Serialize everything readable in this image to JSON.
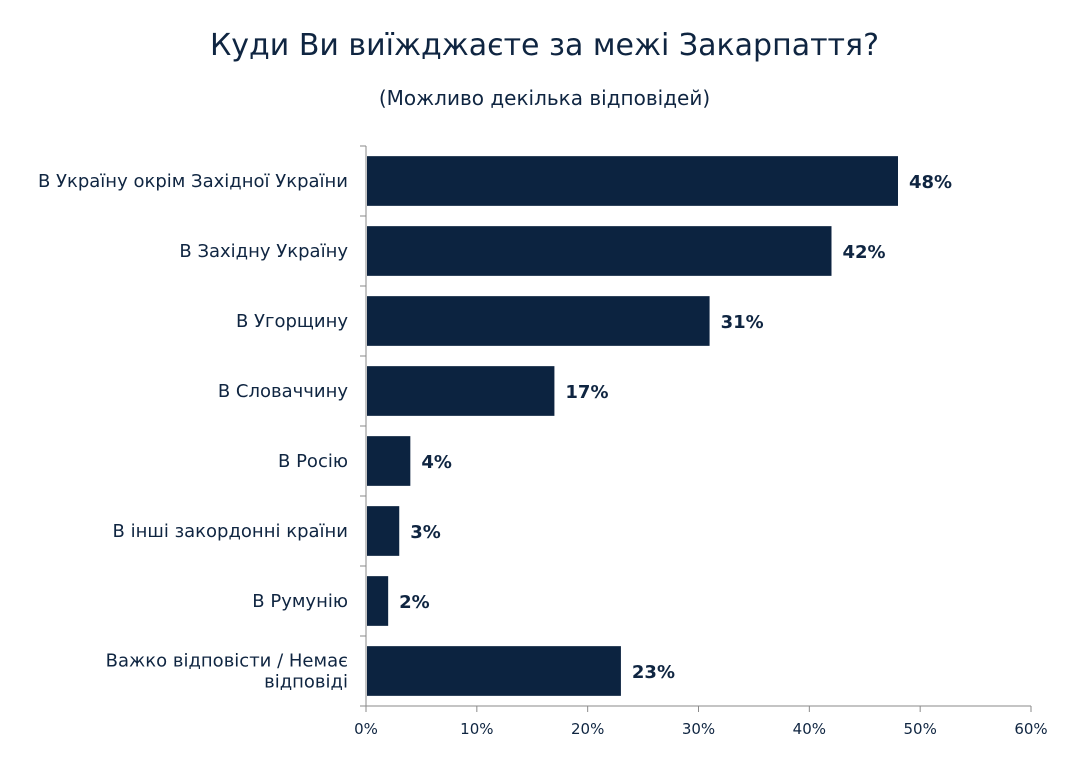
{
  "chart_data": {
    "type": "bar",
    "orientation": "horizontal",
    "title": "Куди Ви виїжджаєте за межі Закарпаття?",
    "subtitle": "(Можливо декілька відповідей)",
    "categories": [
      "В Україну окрім Західної України",
      "В Західну Україну",
      "В Угорщину",
      "В Словаччину",
      "В Росію",
      "В інші закордонні країни",
      "В Румунію",
      "Важко відповісти / Немає відповіді"
    ],
    "values": [
      48,
      42,
      31,
      17,
      4,
      3,
      2,
      23
    ],
    "value_labels": [
      "48%",
      "42%",
      "31%",
      "17%",
      "4%",
      "3%",
      "2%",
      "23%"
    ],
    "xlim": [
      0,
      60
    ],
    "xticks": [
      "0%",
      "10%",
      "20%",
      "30%",
      "40%",
      "50%",
      "60%"
    ],
    "grid": false,
    "bar_color": "#0c2340"
  }
}
